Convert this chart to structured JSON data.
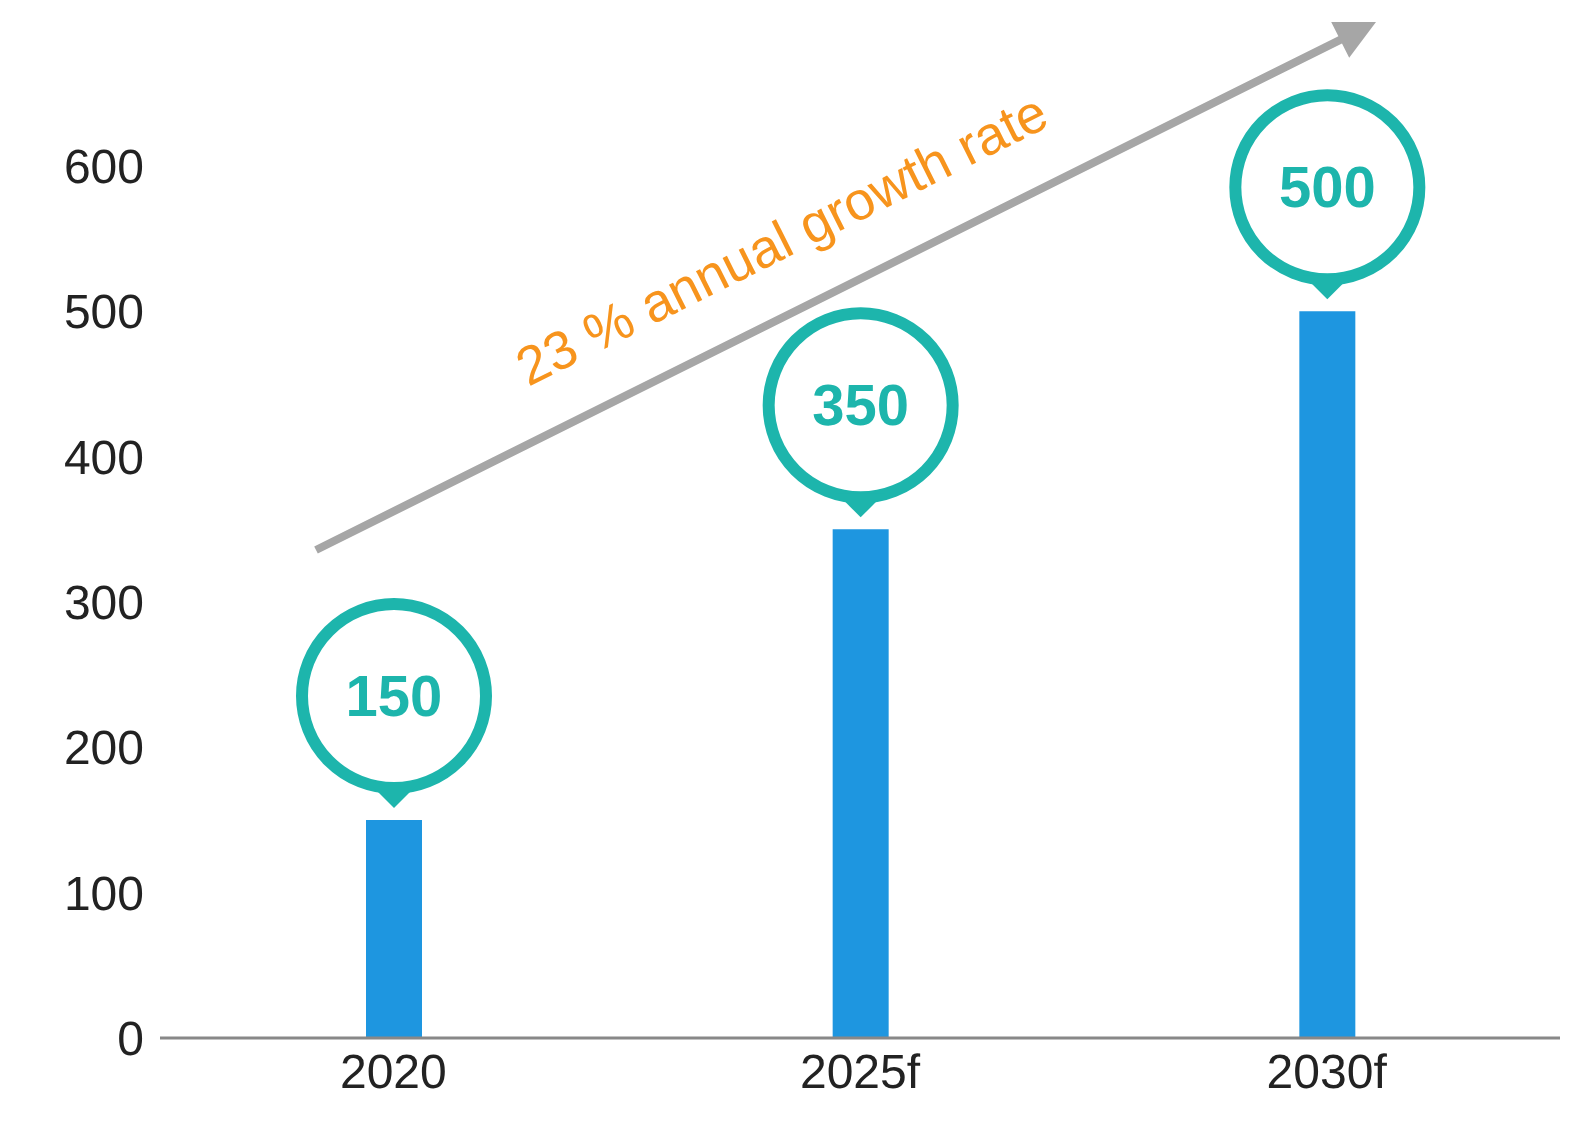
{
  "chart_data": {
    "type": "bar",
    "categories": [
      "2020",
      "2025f",
      "2030f"
    ],
    "values": [
      150,
      350,
      500
    ],
    "color": "#1e96e0",
    "ylim": [
      0,
      600
    ],
    "yticks": [
      0,
      100,
      200,
      300,
      400,
      500,
      600
    ],
    "data_labels": true,
    "annotations": [
      "23 % annual growth rate"
    ]
  }
}
